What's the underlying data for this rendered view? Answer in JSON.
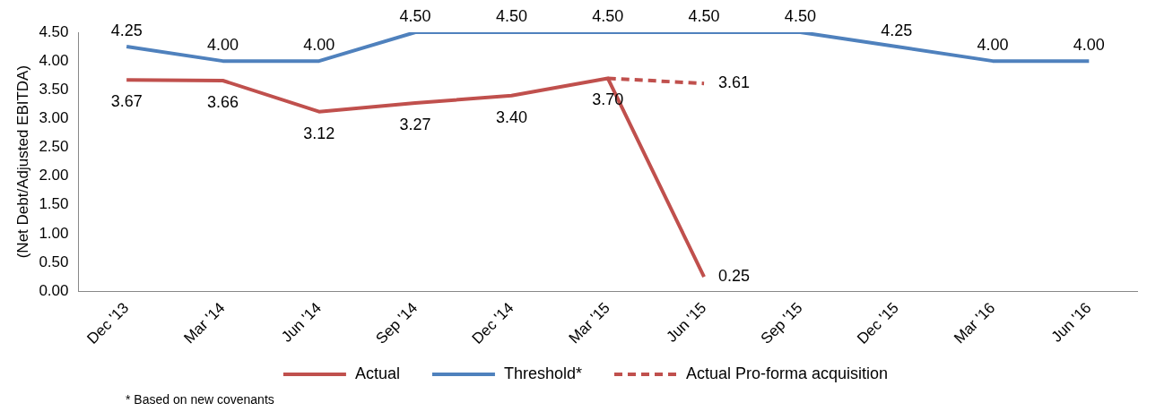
{
  "chart_data": {
    "type": "line",
    "ylabel": "(Net Debt/Adjusted EBITDA)",
    "categories": [
      "Dec '13",
      "Mar '14",
      "Jun '14",
      "Sep '14",
      "Dec '14",
      "Mar '15",
      "Jun '15",
      "Sep '15",
      "Dec '15",
      "Mar '16",
      "Jun '16"
    ],
    "series": [
      {
        "name": "Actual",
        "color": "#c0504d",
        "line_style": "solid",
        "values": [
          3.67,
          3.66,
          3.12,
          3.27,
          3.4,
          3.7,
          0.25,
          null,
          null,
          null,
          null
        ],
        "value_labels": [
          "3.67",
          "3.66",
          "3.12",
          "3.27",
          "3.40",
          "3.70",
          "0.25",
          null,
          null,
          null,
          null
        ]
      },
      {
        "name": "Threshold*",
        "color": "#4f81bd",
        "line_style": "solid",
        "values": [
          4.25,
          4.0,
          4.0,
          4.5,
          4.5,
          4.5,
          4.5,
          4.5,
          4.25,
          4.0,
          4.0
        ],
        "value_labels": [
          "4.25",
          "4.00",
          "4.00",
          "4.50",
          "4.50",
          "4.50",
          "4.50",
          "4.50",
          "4.25",
          "4.00",
          "4.00"
        ]
      },
      {
        "name": "Actual Pro-forma acquisition",
        "color": "#c0504d",
        "line_style": "dashed",
        "values": [
          null,
          null,
          null,
          null,
          null,
          3.7,
          3.61,
          null,
          null,
          null,
          null
        ],
        "value_labels": [
          null,
          null,
          null,
          null,
          null,
          null,
          "3.61",
          null,
          null,
          null,
          null
        ]
      }
    ],
    "ylim": [
      0,
      4.5
    ],
    "yticks": [
      {
        "value": 0,
        "label": "0.00"
      },
      {
        "value": 0.5,
        "label": "0.50"
      },
      {
        "value": 1,
        "label": "1.00"
      },
      {
        "value": 1.5,
        "label": "1.50"
      },
      {
        "value": 2,
        "label": "2.00"
      },
      {
        "value": 2.5,
        "label": "2.50"
      },
      {
        "value": 3,
        "label": "3.00"
      },
      {
        "value": 3.5,
        "label": "3.50"
      },
      {
        "value": 4,
        "label": "4.00"
      },
      {
        "value": 4.5,
        "label": "4.50"
      }
    ],
    "marker": "none",
    "grid": false,
    "legend": "bottom",
    "annotations": [
      "* Based on new covenants"
    ]
  }
}
